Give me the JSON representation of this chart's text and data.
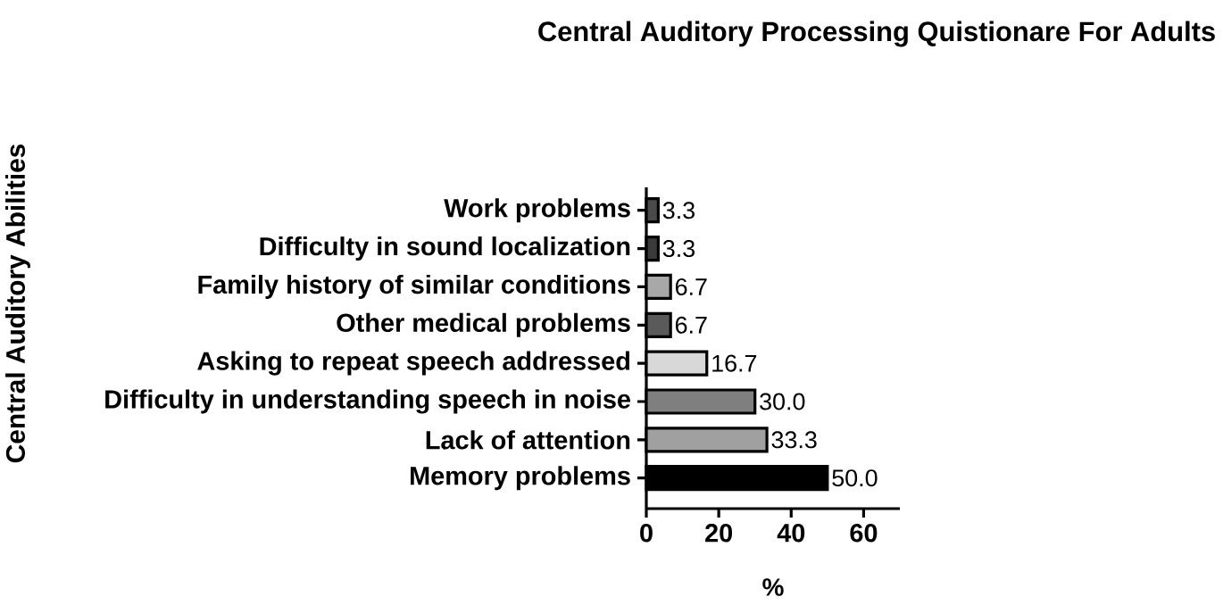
{
  "chart_data": {
    "type": "bar",
    "orientation": "horizontal",
    "title": "Central Auditory Processing Quistionare For Adults",
    "xlabel": "%",
    "ylabel": "Central Auditory Abilities",
    "categories": [
      "Work problems",
      "Difficulty in sound localization",
      "Family history of similar conditions",
      "Other medical problems",
      "Asking to repeat speech addressed",
      "Difficulty in understanding speech in noise",
      "Lack of attention",
      "Memory problems"
    ],
    "values": [
      3.3,
      3.3,
      6.7,
      6.7,
      16.7,
      30.0,
      33.3,
      50.0
    ],
    "value_labels": [
      "3.3",
      "3.3",
      "6.7",
      "6.7",
      "16.7",
      "30.0",
      "33.3",
      "50.0"
    ],
    "colors": [
      "#4a4a4a",
      "#3a3a3a",
      "#a8a8a8",
      "#5a5a5a",
      "#d8d8d8",
      "#7f7f7f",
      "#a0a0a0",
      "#000000"
    ],
    "xlim": [
      0,
      70
    ],
    "xticks": [
      0,
      20,
      40,
      60
    ],
    "grid": false
  }
}
